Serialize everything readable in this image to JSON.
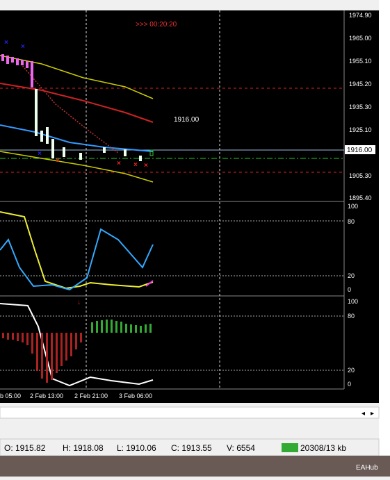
{
  "countdown": ">>> 00:20:20",
  "big_price": "1916.00",
  "price_axis": [
    "1974.90",
    "1965.00",
    "1955.10",
    "1945.20",
    "1935.30",
    "1925.10",
    "1905.30",
    "1895.40"
  ],
  "current_price": "1916.00",
  "indicator1_axis": [
    "100",
    "80",
    "20",
    "0"
  ],
  "indicator2_axis": [
    "100",
    "80",
    "20",
    "0"
  ],
  "time_axis": [
    "b 05:00",
    "2 Feb 13:00",
    "2 Feb 21:00",
    "3 Feb 06:00"
  ],
  "status": {
    "open": "O: 1915.82",
    "high": "H: 1918.08",
    "low": "L: 1910.06",
    "close": "C: 1913.55",
    "volume": "V: 6554",
    "memory": "20308/13 kb"
  },
  "watermark": "EAHub"
}
